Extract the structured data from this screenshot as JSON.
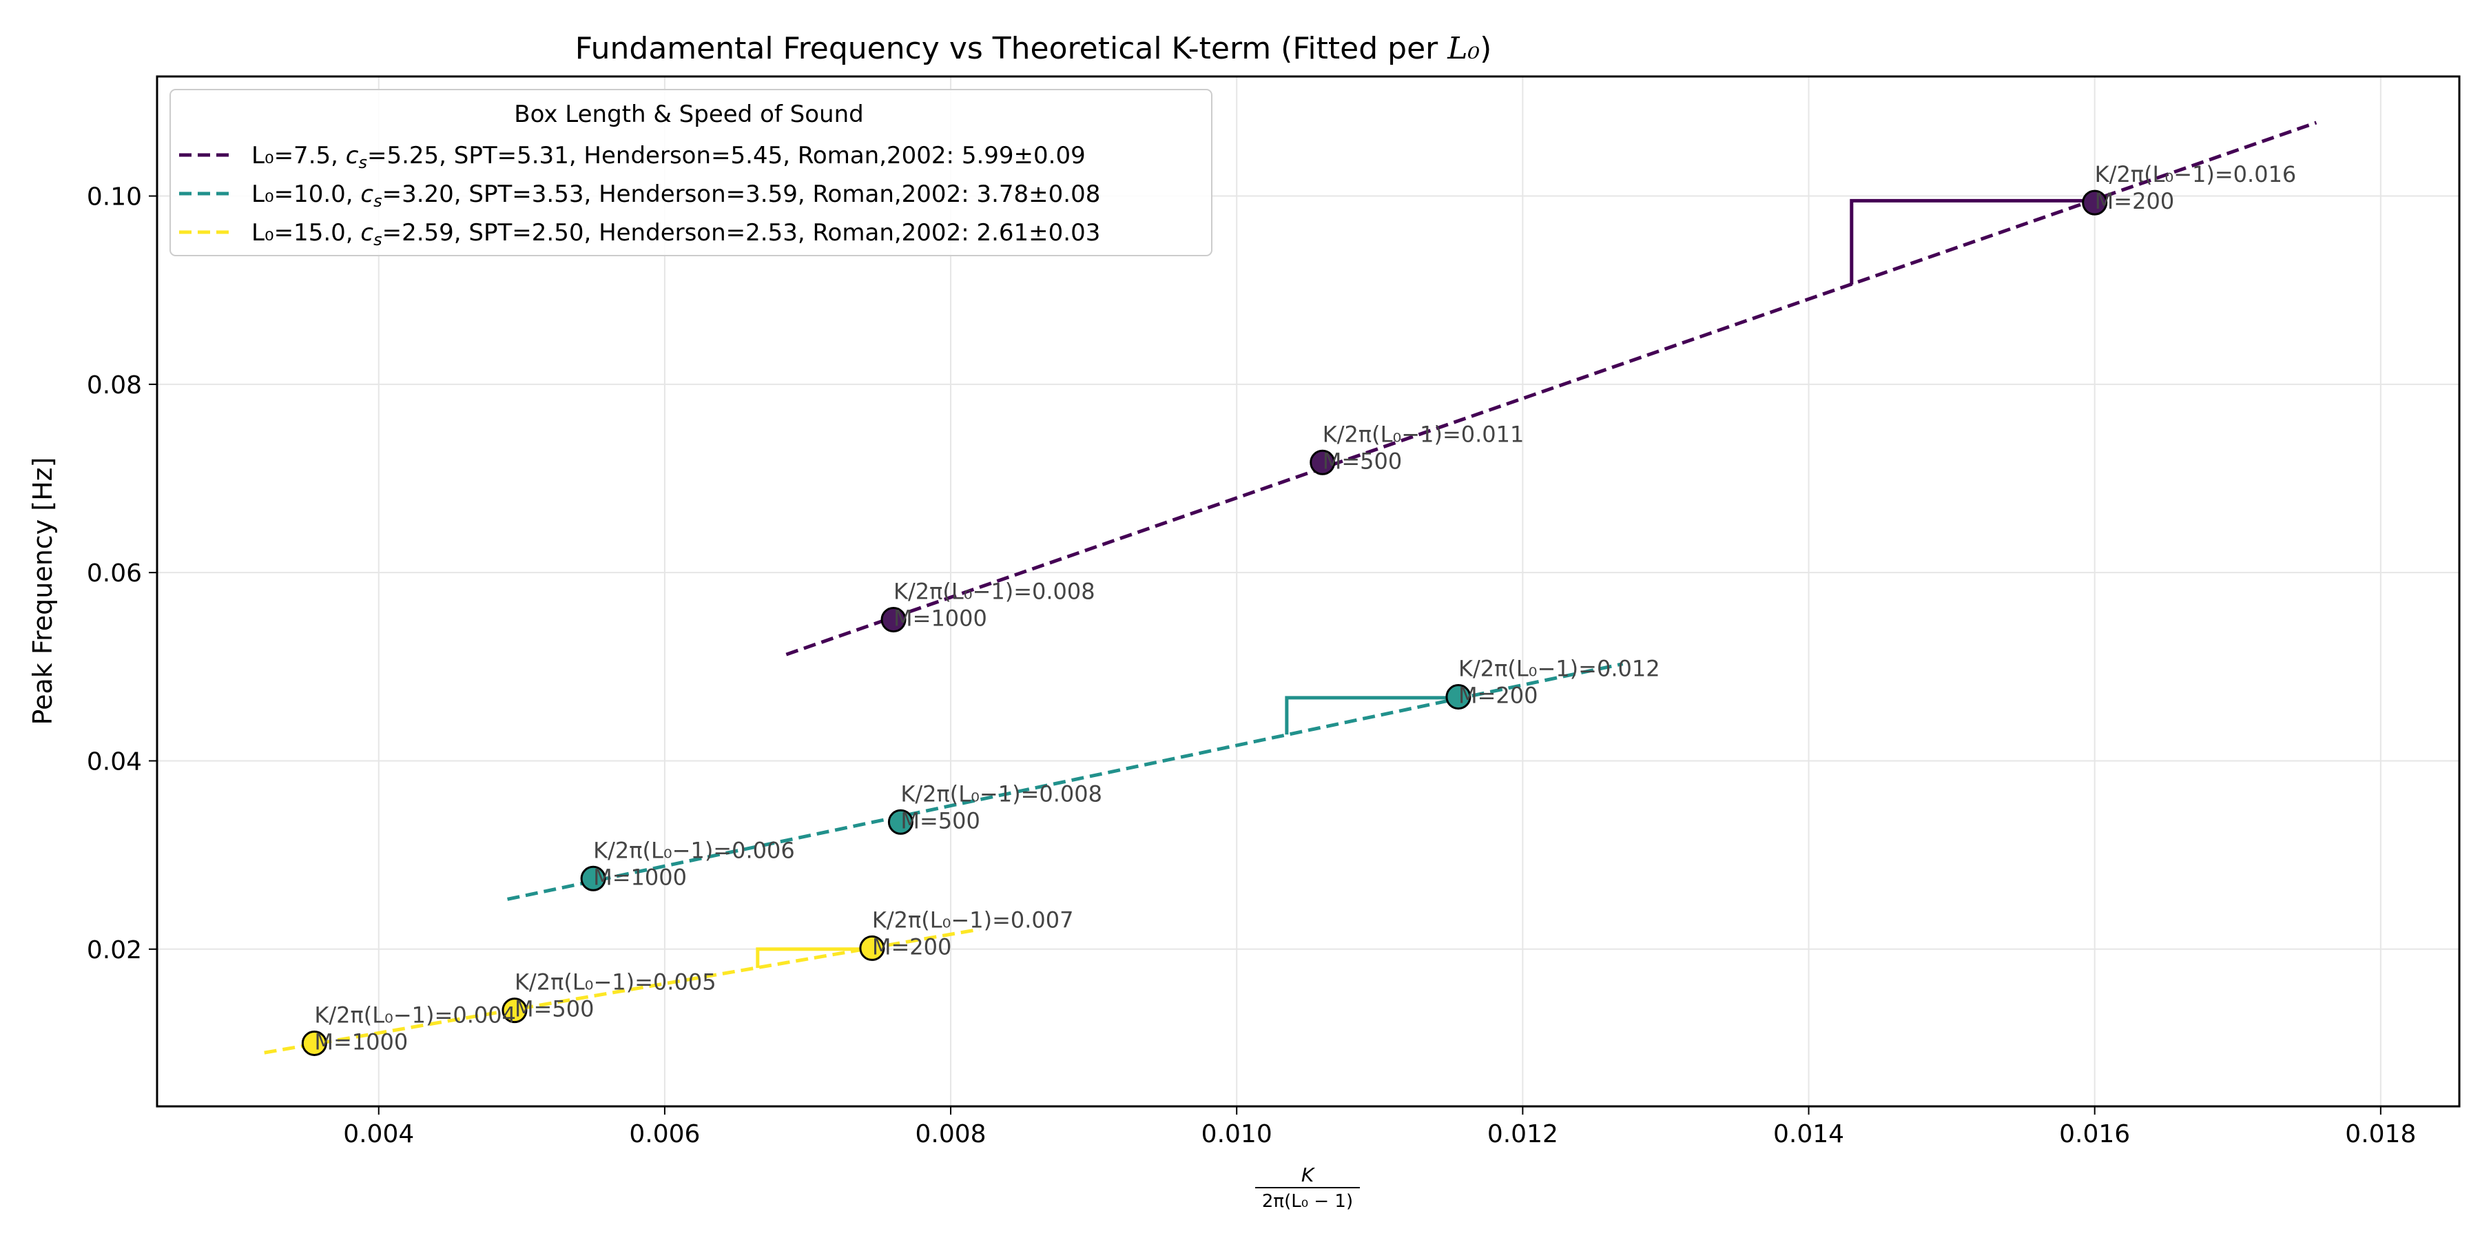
{
  "chart_data": {
    "type": "scatter",
    "title": "Fundamental Frequency vs Theoretical K-term (Fitted per L₀)",
    "title_main": "Fundamental Frequency vs Theoretical K-term (Fitted per ",
    "title_math": "L₀",
    "title_end": ")",
    "xlabel_num": "K",
    "xlabel_den": "2π(L₀ − 1)",
    "ylabel": "Peak Frequency [Hz]",
    "xlim": [
      0.00245,
      0.01855
    ],
    "ylim": [
      0.0033,
      0.1127
    ],
    "x_ticks": [
      0.004,
      0.006,
      0.008,
      0.01,
      0.012,
      0.014,
      0.016,
      0.018
    ],
    "x_tick_labels": [
      "0.004",
      "0.006",
      "0.008",
      "0.010",
      "0.012",
      "0.014",
      "0.016",
      "0.018"
    ],
    "y_ticks": [
      0.02,
      0.04,
      0.06,
      0.08,
      0.1
    ],
    "y_tick_labels": [
      "0.02",
      "0.04",
      "0.06",
      "0.08",
      "0.10"
    ],
    "grid": true,
    "legend": {
      "title": "Box Length & Speed of Sound",
      "placement": "upper-left",
      "entries": [
        {
          "pre": "L₀=7.5,  ",
          "sym": "c",
          "sub": "s",
          "post": "=5.25, SPT=5.31, Henderson=5.45, Roman,2002: 5.99±0.09"
        },
        {
          "pre": "L₀=10.0,  ",
          "sym": "c",
          "sub": "s",
          "post": "=3.20, SPT=3.53, Henderson=3.59, Roman,2002: 3.78±0.08"
        },
        {
          "pre": "L₀=15.0,  ",
          "sym": "c",
          "sub": "s",
          "post": "=2.59, SPT=2.50, Henderson=2.53, Roman,2002: 2.61±0.03"
        }
      ]
    },
    "series": [
      {
        "color": "#440154",
        "marker_color": "#4a1a5c",
        "fit_x": [
          0.00685,
          0.01755
        ],
        "fit_y": [
          0.0513,
          0.1078
        ],
        "triangle": {
          "x1": 0.0143,
          "x2": 0.016,
          "y_top": 0.0995,
          "y_bottom": 0.0906
        },
        "points": [
          {
            "x": 0.0076,
            "y": 0.055,
            "label1": "K/2π(L₀−1)=0.008",
            "label2": "M=1000"
          },
          {
            "x": 0.0106,
            "y": 0.0717,
            "label1": "K/2π(L₀−1)=0.011",
            "label2": "M=500"
          },
          {
            "x": 0.016,
            "y": 0.0993,
            "label1": "K/2π(L₀−1)=0.016",
            "label2": "M=200"
          }
        ]
      },
      {
        "color": "#21918c",
        "marker_color": "#2a9a8f",
        "fit_x": [
          0.0049,
          0.0127
        ],
        "fit_y": [
          0.0253,
          0.0503
        ],
        "triangle": {
          "x1": 0.01035,
          "x2": 0.01155,
          "y_top": 0.0467,
          "y_bottom": 0.0428
        },
        "points": [
          {
            "x": 0.0055,
            "y": 0.0275,
            "label1": "K/2π(L₀−1)=0.006",
            "label2": "M=1000"
          },
          {
            "x": 0.00765,
            "y": 0.0335,
            "label1": "K/2π(L₀−1)=0.008",
            "label2": "M=500"
          },
          {
            "x": 0.01155,
            "y": 0.0468,
            "label1": "K/2π(L₀−1)=0.012",
            "label2": "M=200"
          }
        ]
      },
      {
        "color": "#fde725",
        "marker_color": "#fde725",
        "fit_x": [
          0.0032,
          0.0082
        ],
        "fit_y": [
          0.009,
          0.0221
        ],
        "triangle": {
          "x1": 0.00665,
          "x2": 0.00745,
          "y_top": 0.02,
          "y_bottom": 0.018
        },
        "points": [
          {
            "x": 0.00355,
            "y": 0.01,
            "label1": "K/2π(L₀−1)=0.004",
            "label2": "M=1000"
          },
          {
            "x": 0.00495,
            "y": 0.0135,
            "label1": "K/2π(L₀−1)=0.005",
            "label2": "M=500"
          },
          {
            "x": 0.00745,
            "y": 0.0201,
            "label1": "K/2π(L₀−1)=0.007",
            "label2": "M=200"
          }
        ]
      }
    ]
  }
}
